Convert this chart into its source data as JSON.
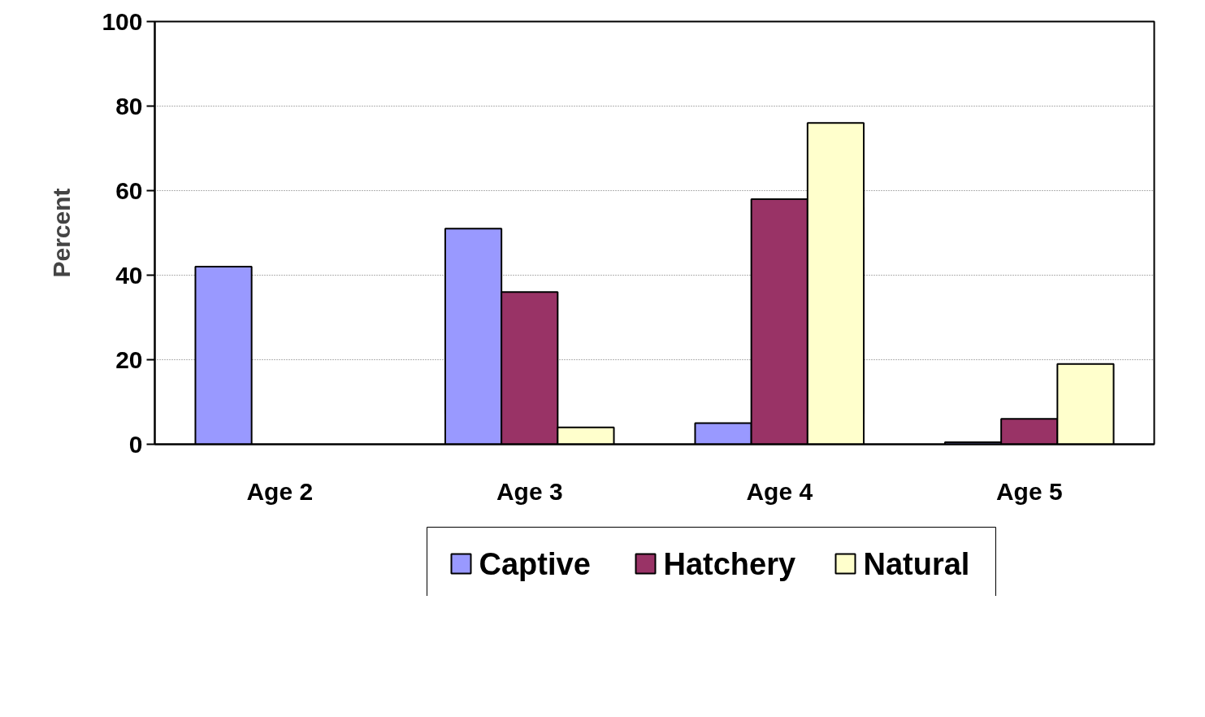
{
  "chart_data": {
    "type": "bar",
    "ylabel": "Percent",
    "categories": [
      "Age 2",
      "Age 3",
      "Age 4",
      "Age 5"
    ],
    "series": [
      {
        "name": "Captive",
        "color": "#9999ff",
        "values": [
          42,
          51,
          5,
          0.5
        ]
      },
      {
        "name": "Hatchery",
        "color": "#993366",
        "values": [
          null,
          36,
          58,
          6
        ]
      },
      {
        "name": "Natural",
        "color": "#ffffcc",
        "values": [
          null,
          4,
          76,
          19
        ]
      }
    ],
    "ylim": [
      0,
      100
    ],
    "yticks": [
      0,
      20,
      40,
      60,
      80,
      100
    ],
    "grid": "y",
    "legend": "bottom"
  }
}
